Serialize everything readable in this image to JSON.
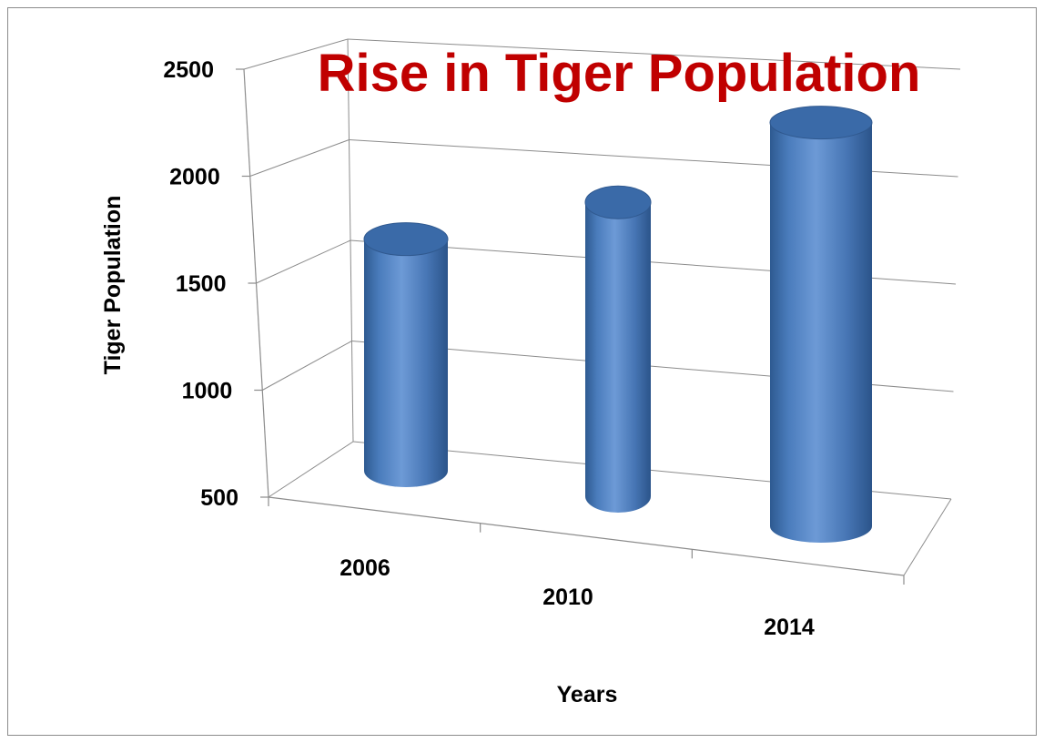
{
  "chart_data": {
    "type": "bar",
    "style": "3d-cylinder",
    "title": "Rise in Tiger Population",
    "xlabel": "Years",
    "ylabel": "Tiger Population",
    "categories": [
      "2006",
      "2010",
      "2014"
    ],
    "values": [
      1411,
      1706,
      2226
    ],
    "ylim": [
      500,
      2500
    ],
    "yticks": [
      "500",
      "1000",
      "1500",
      "2000",
      "2500"
    ],
    "grid": true,
    "legend": "none",
    "colors": {
      "bar": "#4f81bd",
      "title": "#c00000",
      "grid": "#8c8c8c"
    }
  }
}
